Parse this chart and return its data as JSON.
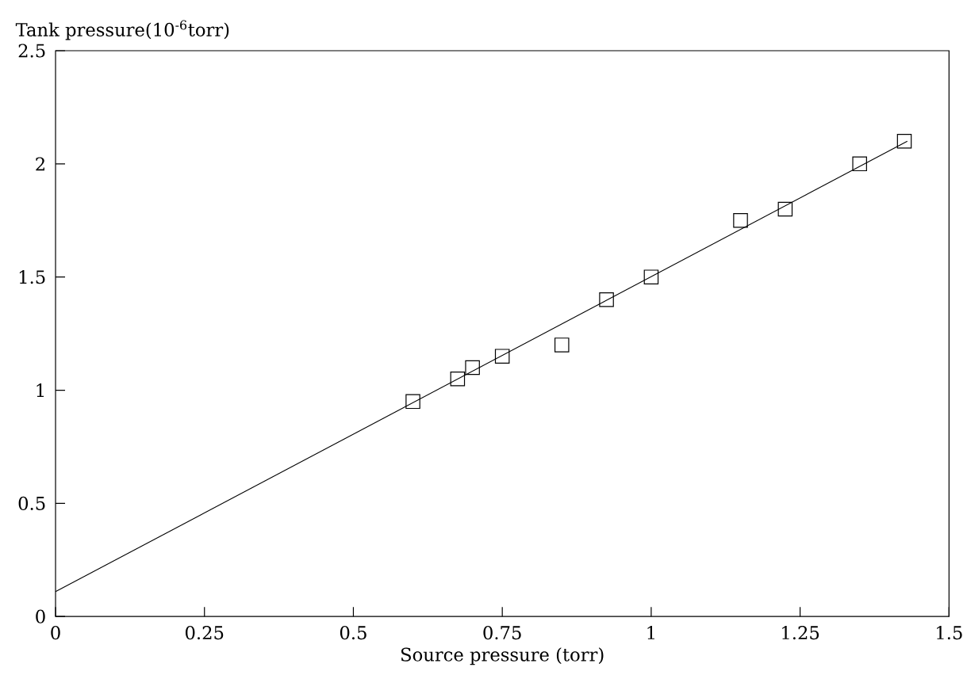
{
  "chart_data": {
    "type": "scatter",
    "xlabel": "Source pressure (torr)",
    "ylabel": "Tank pressure(10$^{-6}$torr)",
    "x": [
      0.6,
      0.675,
      0.7,
      0.75,
      0.85,
      0.925,
      1.0,
      1.15,
      1.225,
      1.35,
      1.425
    ],
    "xlim": [
      0,
      1.5
    ],
    "ylim": [
      0,
      2.5
    ],
    "xticks": [
      0,
      0.25,
      0.5,
      0.75,
      1,
      1.25,
      1.5
    ],
    "yticks": [
      0,
      0.5,
      1,
      1.5,
      2,
      2.5
    ],
    "series": [
      {
        "marker": "square",
        "color": "#000000",
        "values": [
          0.95,
          1.05,
          1.1,
          1.15,
          1.2,
          1.4,
          1.5,
          1.75,
          1.8,
          2.0,
          2.1
        ]
      },
      {
        "type": "line",
        "marker": "none",
        "line_style": "solid",
        "color": "#000000",
        "x": [
          0,
          1.43
        ],
        "values": [
          0.11,
          2.1
        ]
      }
    ]
  }
}
